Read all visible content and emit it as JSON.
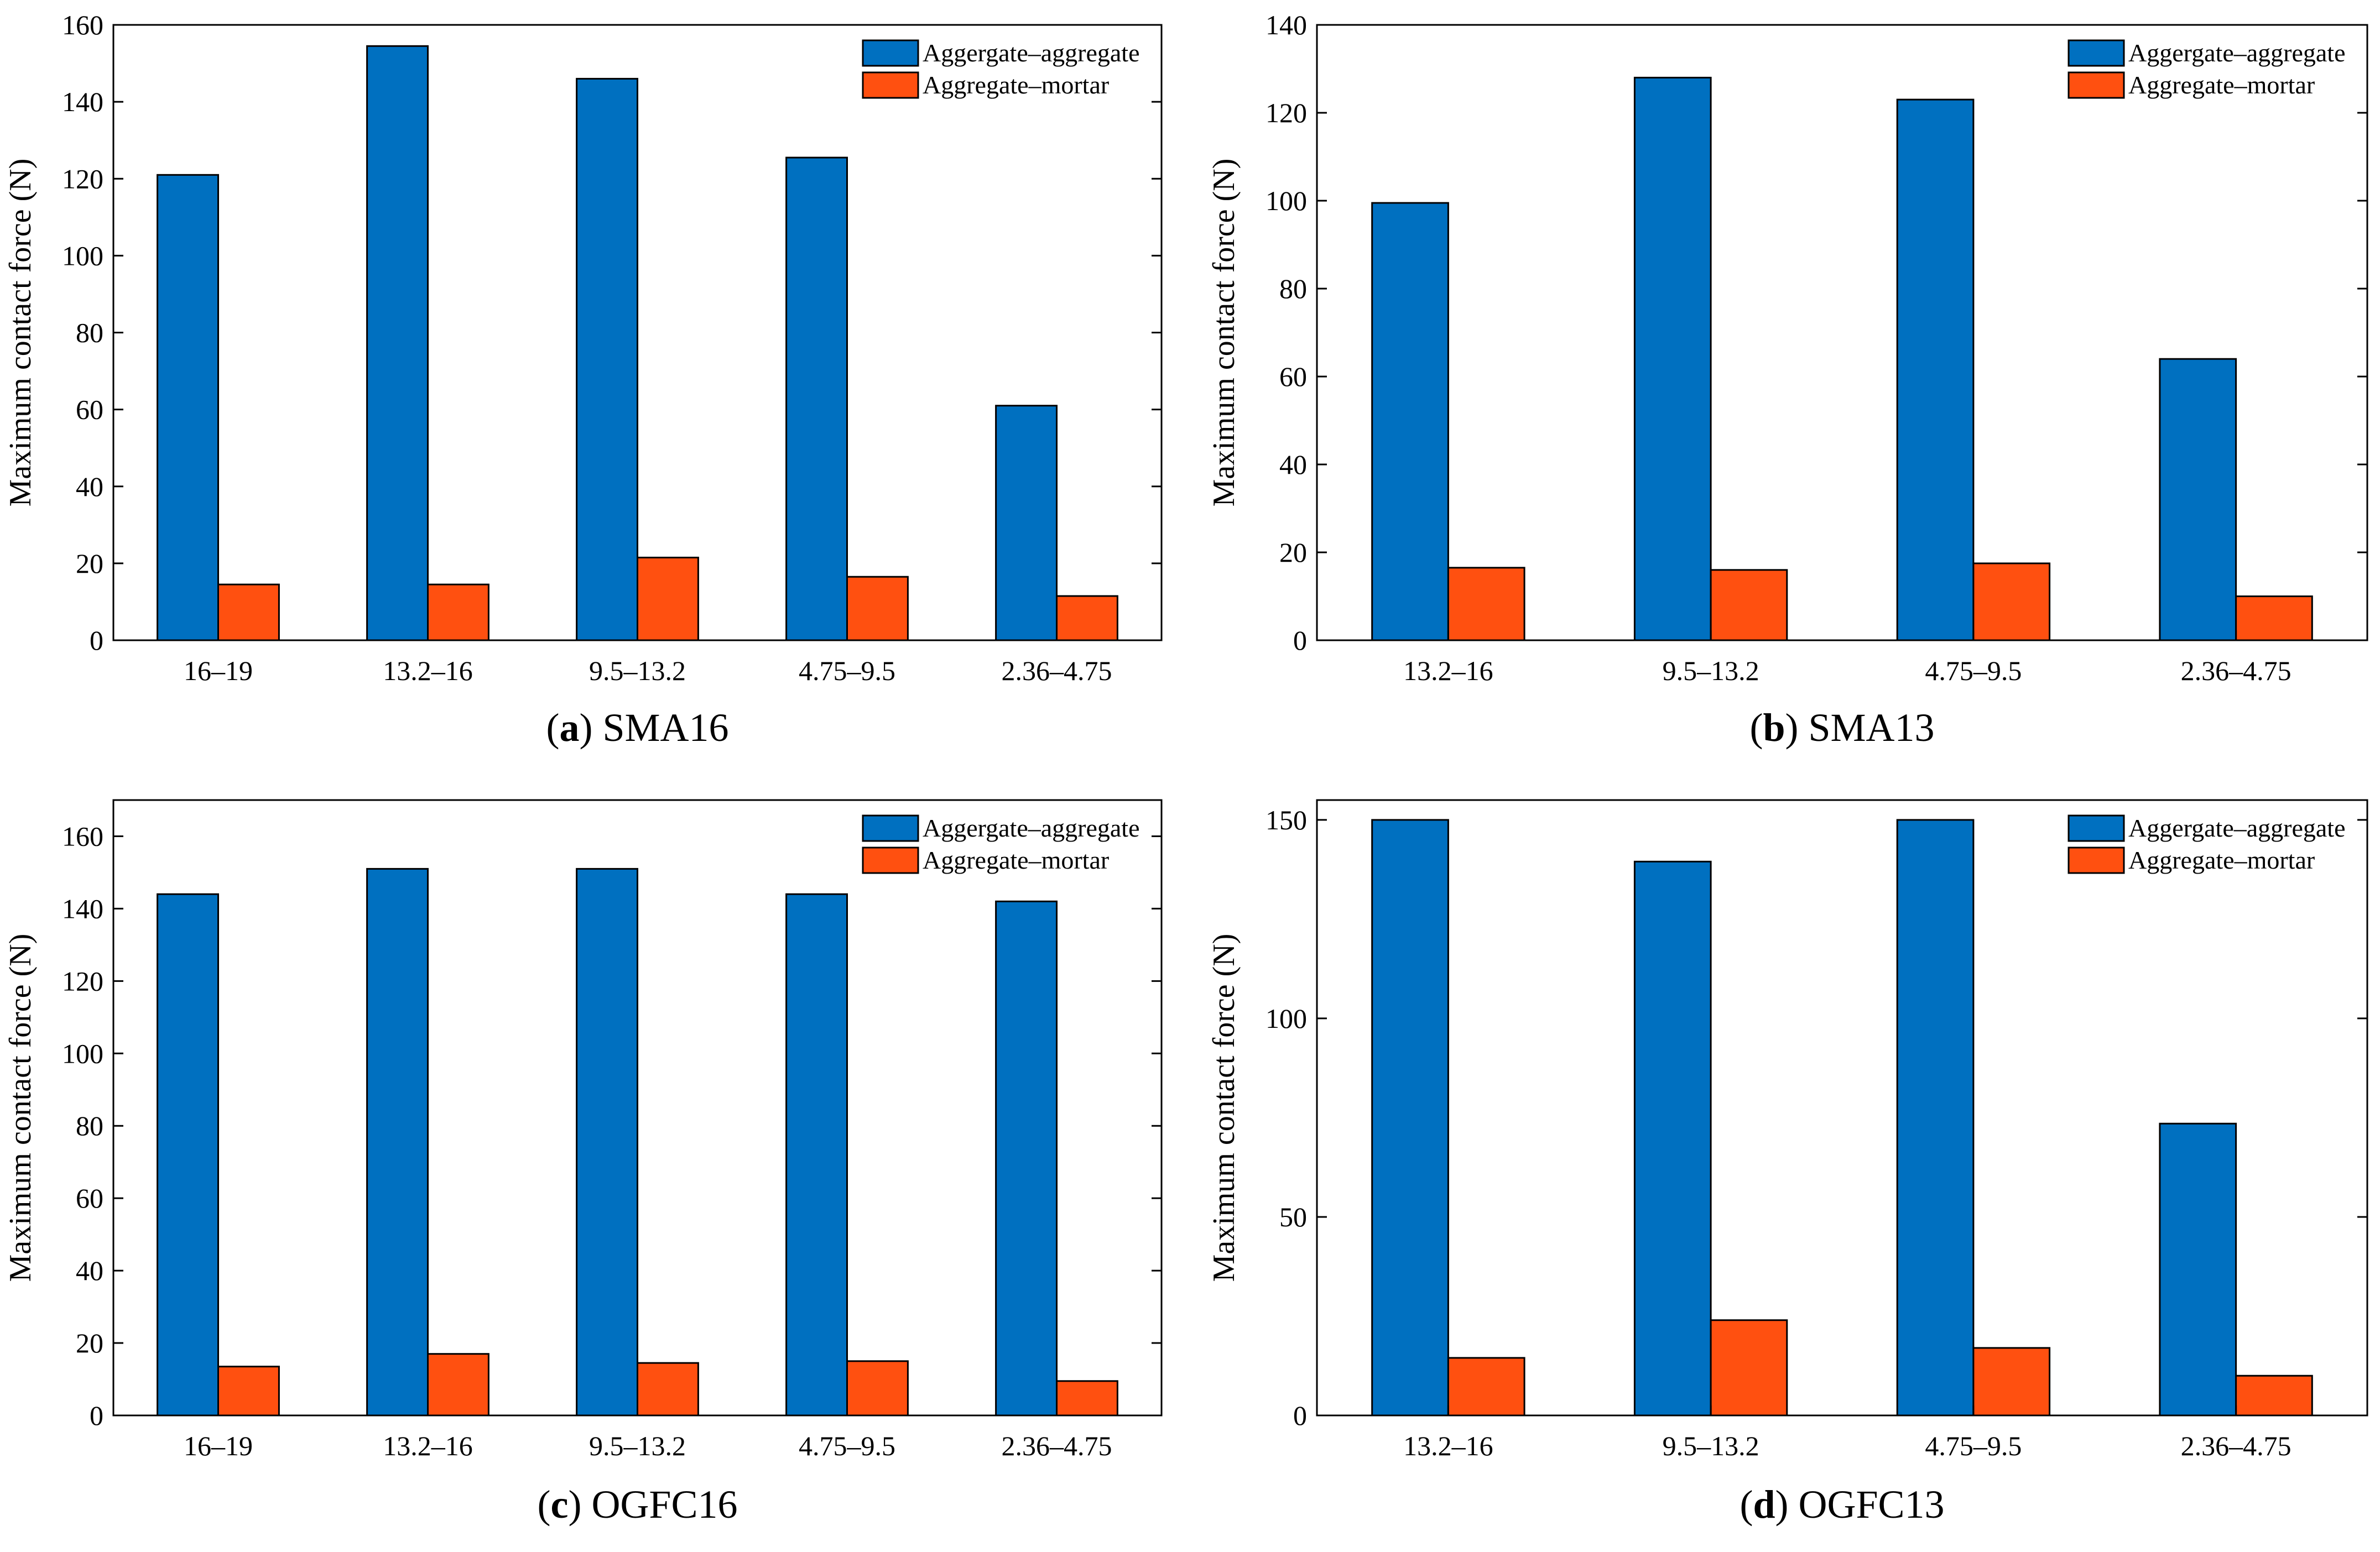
{
  "figure": {
    "panels": [
      {
        "id": "a",
        "caption_letter": "a",
        "caption_text": "SMA16",
        "chart_data": {
          "type": "bar",
          "title": "",
          "xlabel": "",
          "ylabel": "Maximum contact force (N)",
          "categories": [
            "16–19",
            "13.2–16",
            "9.5–13.2",
            "4.75–9.5",
            "2.36–4.75"
          ],
          "series": [
            {
              "name": "Aggergate–aggregate",
              "color": "#0070C0",
              "values": [
                121,
                154.5,
                146,
                125.5,
                61
              ]
            },
            {
              "name": "Aggregate–mortar",
              "color": "#FF5010",
              "values": [
                14.5,
                14.5,
                21.5,
                16.5,
                11.5
              ]
            }
          ],
          "ylim": [
            0,
            160
          ],
          "yticks": [
            0,
            20,
            40,
            60,
            80,
            100,
            120,
            140,
            160
          ],
          "legend": "top-right",
          "grid": false
        }
      },
      {
        "id": "b",
        "caption_letter": "b",
        "caption_text": "SMA13",
        "chart_data": {
          "type": "bar",
          "title": "",
          "xlabel": "",
          "ylabel": "Maximum contact force (N)",
          "categories": [
            "13.2–16",
            "9.5–13.2",
            "4.75–9.5",
            "2.36–4.75"
          ],
          "series": [
            {
              "name": "Aggergate–aggregate",
              "color": "#0070C0",
              "values": [
                99.5,
                128,
                123,
                64
              ]
            },
            {
              "name": "Aggregate–mortar",
              "color": "#FF5010",
              "values": [
                16.5,
                16,
                17.5,
                10
              ]
            }
          ],
          "ylim": [
            0,
            140
          ],
          "yticks": [
            0,
            20,
            40,
            60,
            80,
            100,
            120,
            140
          ],
          "legend": "top-right",
          "grid": false
        }
      },
      {
        "id": "c",
        "caption_letter": "c",
        "caption_text": "OGFC16",
        "chart_data": {
          "type": "bar",
          "title": "",
          "xlabel": "",
          "ylabel": "Maximum contact force (N)",
          "categories": [
            "16–19",
            "13.2–16",
            "9.5–13.2",
            "4.75–9.5",
            "2.36–4.75"
          ],
          "series": [
            {
              "name": "Aggergate–aggregate",
              "color": "#0070C0",
              "values": [
                144,
                151,
                151,
                144,
                142
              ]
            },
            {
              "name": "Aggregate–mortar",
              "color": "#FF5010",
              "values": [
                13.5,
                17,
                14.5,
                15,
                9.5
              ]
            }
          ],
          "ylim": [
            0,
            170
          ],
          "yticks": [
            0,
            20,
            40,
            60,
            80,
            100,
            120,
            140,
            160
          ],
          "legend": "top-right",
          "grid": false
        }
      },
      {
        "id": "d",
        "caption_letter": "d",
        "caption_text": "OGFC13",
        "chart_data": {
          "type": "bar",
          "title": "",
          "xlabel": "",
          "ylabel": "Maximum contact force (N)",
          "categories": [
            "13.2–16",
            "9.5–13.2",
            "4.75–9.5",
            "2.36–4.75"
          ],
          "series": [
            {
              "name": "Aggergate–aggregate",
              "color": "#0070C0",
              "values": [
                150,
                139.5,
                150,
                73.5
              ]
            },
            {
              "name": "Aggregate–mortar",
              "color": "#FF5010",
              "values": [
                14.5,
                24,
                17,
                10
              ]
            }
          ],
          "ylim": [
            0,
            155
          ],
          "yticks": [
            0,
            50,
            100,
            150
          ],
          "legend": "top-right",
          "grid": false
        }
      }
    ]
  }
}
